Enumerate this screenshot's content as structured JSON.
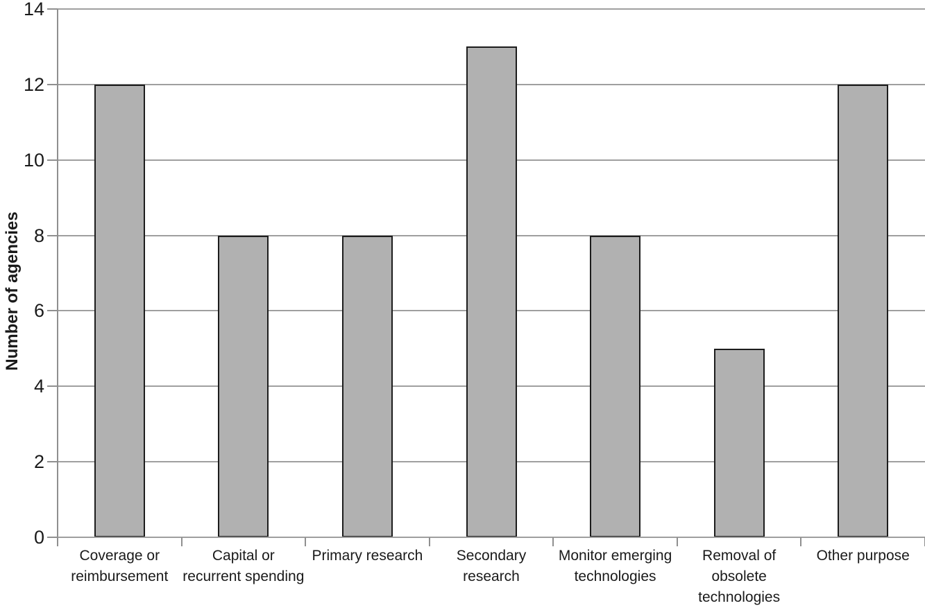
{
  "chart_data": {
    "type": "bar",
    "title": "",
    "xlabel": "",
    "ylabel": "Number of agencies",
    "categories": [
      "Coverage or reimbursement",
      "Capital or recurrent spending",
      "Primary research",
      "Secondary research",
      "Monitor emerging technologies",
      "Removal of obsolete technologies",
      "Other purpose"
    ],
    "category_display_labels": [
      "Coverage or\nreimbursement",
      "Capital or\nrecurrent spending",
      "Primary research",
      "Secondary\nresearch",
      "Monitor emerging\ntechnologies",
      "Removal of\nobsolete\ntechnologies",
      "Other purpose"
    ],
    "values": [
      12,
      8,
      8,
      13,
      8,
      5,
      12
    ],
    "ylim": [
      0,
      14
    ],
    "yticks": [
      0,
      2,
      4,
      6,
      8,
      10,
      12,
      14
    ],
    "grid": true,
    "legend": false,
    "colors": {
      "bar_fill": "#b1b1b1",
      "bar_border": "#1c1c1c",
      "gridline": "#9f9f9f",
      "axis": "#8f8f8f",
      "text": "#1a1a1a"
    }
  }
}
